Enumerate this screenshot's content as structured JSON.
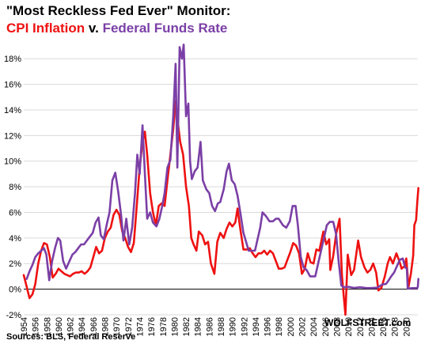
{
  "title": {
    "line1": "\"Most Reckless Fed Ever\" Monitor:",
    "cpi_label": "CPI Inflation",
    "connector": "v.",
    "ffr_label": "Federal Funds Rate"
  },
  "source": "Sources: BLS, Federal Reserve",
  "brand": "WOLFSTREET.com",
  "colors": {
    "cpi": "#ee1111",
    "ffr": "#7b3fa6",
    "grid": "#d9d9d9",
    "axis": "#000000"
  },
  "chart_data": {
    "type": "line",
    "xlim": [
      1954,
      2022
    ],
    "ylim": [
      -2,
      19
    ],
    "yticks": [
      -2,
      0,
      2,
      4,
      6,
      8,
      10,
      12,
      14,
      16,
      18
    ],
    "ytick_labels": [
      "-2%",
      "0%",
      "2%",
      "4%",
      "6%",
      "8%",
      "10%",
      "12%",
      "14%",
      "16%",
      "18%"
    ],
    "xticks": [
      1954,
      1956,
      1958,
      1960,
      1962,
      1964,
      1966,
      1968,
      1970,
      1972,
      1974,
      1976,
      1978,
      1980,
      1982,
      1984,
      1986,
      1988,
      1990,
      1992,
      1994,
      1996,
      1998,
      2000,
      2002,
      2004,
      2006,
      2008,
      2010,
      2012,
      2014,
      2016,
      2018,
      2020
    ],
    "grid": "horizontal",
    "series": [
      {
        "name": "CPI Inflation",
        "color": "#ee1111",
        "points": [
          [
            1954.0,
            1.1
          ],
          [
            1954.5,
            0.2
          ],
          [
            1955.0,
            -0.7
          ],
          [
            1955.5,
            -0.4
          ],
          [
            1956.0,
            0.4
          ],
          [
            1956.5,
            2.0
          ],
          [
            1957.0,
            3.0
          ],
          [
            1957.5,
            3.6
          ],
          [
            1958.0,
            3.5
          ],
          [
            1958.5,
            2.5
          ],
          [
            1959.0,
            0.9
          ],
          [
            1959.5,
            1.2
          ],
          [
            1960.0,
            1.6
          ],
          [
            1960.5,
            1.4
          ],
          [
            1961.0,
            1.2
          ],
          [
            1961.5,
            1.1
          ],
          [
            1962.0,
            1.0
          ],
          [
            1962.5,
            1.2
          ],
          [
            1963.0,
            1.3
          ],
          [
            1963.5,
            1.3
          ],
          [
            1964.0,
            1.4
          ],
          [
            1964.5,
            1.2
          ],
          [
            1965.0,
            1.4
          ],
          [
            1965.5,
            1.7
          ],
          [
            1966.0,
            2.5
          ],
          [
            1966.5,
            3.3
          ],
          [
            1967.0,
            2.8
          ],
          [
            1967.5,
            3.0
          ],
          [
            1968.0,
            4.0
          ],
          [
            1968.5,
            4.5
          ],
          [
            1969.0,
            4.8
          ],
          [
            1969.5,
            5.8
          ],
          [
            1970.0,
            6.2
          ],
          [
            1970.5,
            5.8
          ],
          [
            1971.0,
            4.5
          ],
          [
            1971.5,
            4.0
          ],
          [
            1972.0,
            3.3
          ],
          [
            1972.5,
            2.9
          ],
          [
            1973.0,
            3.6
          ],
          [
            1973.5,
            6.5
          ],
          [
            1974.0,
            9.5
          ],
          [
            1974.5,
            11.5
          ],
          [
            1974.9,
            12.3
          ],
          [
            1975.3,
            10.5
          ],
          [
            1975.8,
            7.5
          ],
          [
            1976.3,
            6.0
          ],
          [
            1976.8,
            5.0
          ],
          [
            1977.3,
            6.5
          ],
          [
            1977.8,
            6.7
          ],
          [
            1978.3,
            6.5
          ],
          [
            1978.8,
            8.5
          ],
          [
            1979.3,
            10.5
          ],
          [
            1979.8,
            12.5
          ],
          [
            1980.2,
            14.7
          ],
          [
            1980.6,
            13.0
          ],
          [
            1981.0,
            11.5
          ],
          [
            1981.5,
            10.5
          ],
          [
            1982.0,
            8.0
          ],
          [
            1982.5,
            6.5
          ],
          [
            1982.9,
            4.0
          ],
          [
            1983.3,
            3.5
          ],
          [
            1983.8,
            3.0
          ],
          [
            1984.2,
            4.5
          ],
          [
            1984.8,
            4.2
          ],
          [
            1985.3,
            3.5
          ],
          [
            1985.8,
            3.7
          ],
          [
            1986.3,
            2.0
          ],
          [
            1986.9,
            1.2
          ],
          [
            1987.4,
            3.7
          ],
          [
            1987.9,
            4.4
          ],
          [
            1988.5,
            4.0
          ],
          [
            1989.0,
            4.7
          ],
          [
            1989.5,
            5.2
          ],
          [
            1990.0,
            4.9
          ],
          [
            1990.5,
            5.2
          ],
          [
            1990.9,
            6.3
          ],
          [
            1991.3,
            4.9
          ],
          [
            1991.9,
            3.1
          ],
          [
            1992.5,
            3.1
          ],
          [
            1993.0,
            3.2
          ],
          [
            1993.5,
            2.8
          ],
          [
            1994.0,
            2.5
          ],
          [
            1994.5,
            2.8
          ],
          [
            1995.0,
            2.8
          ],
          [
            1995.5,
            3.0
          ],
          [
            1996.0,
            2.7
          ],
          [
            1996.5,
            3.0
          ],
          [
            1997.0,
            2.8
          ],
          [
            1997.5,
            2.2
          ],
          [
            1998.0,
            1.6
          ],
          [
            1998.5,
            1.6
          ],
          [
            1999.0,
            1.7
          ],
          [
            1999.5,
            2.3
          ],
          [
            2000.0,
            2.9
          ],
          [
            2000.5,
            3.6
          ],
          [
            2001.0,
            3.4
          ],
          [
            2001.5,
            2.8
          ],
          [
            2002.0,
            1.2
          ],
          [
            2002.5,
            1.6
          ],
          [
            2003.0,
            2.8
          ],
          [
            2003.5,
            2.1
          ],
          [
            2004.0,
            2.0
          ],
          [
            2004.5,
            3.1
          ],
          [
            2005.0,
            3.0
          ],
          [
            2005.7,
            4.5
          ],
          [
            2006.2,
            3.5
          ],
          [
            2006.7,
            3.9
          ],
          [
            2006.9,
            1.5
          ],
          [
            2007.4,
            2.6
          ],
          [
            2007.9,
            4.3
          ],
          [
            2008.5,
            5.5
          ],
          [
            2008.9,
            1.1
          ],
          [
            2009.2,
            -0.5
          ],
          [
            2009.5,
            -2.0
          ],
          [
            2009.9,
            2.7
          ],
          [
            2010.5,
            1.1
          ],
          [
            2011.0,
            1.5
          ],
          [
            2011.7,
            3.8
          ],
          [
            2012.2,
            2.5
          ],
          [
            2012.8,
            1.7
          ],
          [
            2013.3,
            1.3
          ],
          [
            2013.8,
            1.5
          ],
          [
            2014.3,
            2.0
          ],
          [
            2014.8,
            1.3
          ],
          [
            2015.2,
            -0.1
          ],
          [
            2015.7,
            0.1
          ],
          [
            2016.3,
            1.0
          ],
          [
            2016.8,
            2.0
          ],
          [
            2017.2,
            2.5
          ],
          [
            2017.7,
            2.0
          ],
          [
            2018.3,
            2.8
          ],
          [
            2018.8,
            2.2
          ],
          [
            2019.2,
            1.6
          ],
          [
            2019.7,
            1.8
          ],
          [
            2020.0,
            2.4
          ],
          [
            2020.4,
            0.2
          ],
          [
            2020.8,
            1.2
          ],
          [
            2021.2,
            2.6
          ],
          [
            2021.4,
            5.0
          ],
          [
            2021.7,
            5.4
          ],
          [
            2021.9,
            6.8
          ],
          [
            2022.1,
            7.9
          ]
        ]
      },
      {
        "name": "Federal Funds Rate",
        "color": "#7b3fa6",
        "points": [
          [
            1954.5,
            0.8
          ],
          [
            1955.0,
            1.4
          ],
          [
            1955.5,
            1.9
          ],
          [
            1956.0,
            2.5
          ],
          [
            1956.5,
            2.8
          ],
          [
            1957.0,
            3.0
          ],
          [
            1957.5,
            3.2
          ],
          [
            1957.9,
            2.7
          ],
          [
            1958.4,
            0.7
          ],
          [
            1958.9,
            2.2
          ],
          [
            1959.4,
            3.2
          ],
          [
            1959.9,
            4.0
          ],
          [
            1960.3,
            3.8
          ],
          [
            1960.8,
            2.2
          ],
          [
            1961.3,
            1.6
          ],
          [
            1961.8,
            2.1
          ],
          [
            1962.4,
            2.7
          ],
          [
            1962.9,
            2.9
          ],
          [
            1963.4,
            3.2
          ],
          [
            1963.9,
            3.5
          ],
          [
            1964.4,
            3.5
          ],
          [
            1964.9,
            3.8
          ],
          [
            1965.4,
            4.1
          ],
          [
            1965.9,
            4.4
          ],
          [
            1966.4,
            5.2
          ],
          [
            1966.9,
            5.6
          ],
          [
            1967.3,
            4.2
          ],
          [
            1967.8,
            3.9
          ],
          [
            1968.3,
            5.0
          ],
          [
            1968.8,
            6.0
          ],
          [
            1969.3,
            8.5
          ],
          [
            1969.8,
            9.1
          ],
          [
            1970.3,
            7.6
          ],
          [
            1970.8,
            5.8
          ],
          [
            1971.2,
            3.8
          ],
          [
            1971.7,
            5.5
          ],
          [
            1972.2,
            3.5
          ],
          [
            1972.7,
            4.8
          ],
          [
            1973.2,
            7.5
          ],
          [
            1973.6,
            10.5
          ],
          [
            1974.0,
            9.0
          ],
          [
            1974.5,
            12.8
          ],
          [
            1974.9,
            9.0
          ],
          [
            1975.3,
            5.5
          ],
          [
            1975.8,
            6.0
          ],
          [
            1976.3,
            5.2
          ],
          [
            1976.9,
            4.9
          ],
          [
            1977.4,
            5.5
          ],
          [
            1977.9,
            6.5
          ],
          [
            1978.3,
            7.5
          ],
          [
            1978.8,
            9.5
          ],
          [
            1979.3,
            10.1
          ],
          [
            1979.8,
            13.5
          ],
          [
            1980.2,
            17.6
          ],
          [
            1980.5,
            9.5
          ],
          [
            1980.9,
            18.9
          ],
          [
            1981.3,
            18.0
          ],
          [
            1981.6,
            19.1
          ],
          [
            1982.0,
            13.5
          ],
          [
            1982.4,
            14.5
          ],
          [
            1982.7,
            10.0
          ],
          [
            1983.0,
            8.6
          ],
          [
            1983.5,
            9.2
          ],
          [
            1984.0,
            9.5
          ],
          [
            1984.5,
            11.5
          ],
          [
            1984.9,
            8.5
          ],
          [
            1985.5,
            7.8
          ],
          [
            1986.0,
            7.5
          ],
          [
            1986.5,
            6.5
          ],
          [
            1987.0,
            6.1
          ],
          [
            1987.5,
            6.7
          ],
          [
            1987.9,
            6.8
          ],
          [
            1988.5,
            7.8
          ],
          [
            1989.0,
            9.2
          ],
          [
            1989.4,
            9.8
          ],
          [
            1989.9,
            8.5
          ],
          [
            1990.4,
            8.2
          ],
          [
            1990.9,
            7.3
          ],
          [
            1991.4,
            5.9
          ],
          [
            1991.9,
            4.4
          ],
          [
            1992.3,
            3.8
          ],
          [
            1992.8,
            3.0
          ],
          [
            1993.3,
            3.0
          ],
          [
            1993.9,
            3.0
          ],
          [
            1994.3,
            3.8
          ],
          [
            1994.8,
            4.8
          ],
          [
            1995.2,
            6.0
          ],
          [
            1995.8,
            5.7
          ],
          [
            1996.4,
            5.3
          ],
          [
            1997.0,
            5.3
          ],
          [
            1997.5,
            5.5
          ],
          [
            1998.0,
            5.5
          ],
          [
            1998.7,
            5.0
          ],
          [
            1999.3,
            4.8
          ],
          [
            1999.9,
            5.3
          ],
          [
            2000.4,
            6.5
          ],
          [
            2000.9,
            6.5
          ],
          [
            2001.3,
            5.0
          ],
          [
            2001.8,
            2.5
          ],
          [
            2002.3,
            1.7
          ],
          [
            2002.8,
            1.5
          ],
          [
            2003.4,
            1.0
          ],
          [
            2003.9,
            1.0
          ],
          [
            2004.3,
            1.0
          ],
          [
            2004.8,
            2.0
          ],
          [
            2005.3,
            3.0
          ],
          [
            2005.8,
            4.0
          ],
          [
            2006.3,
            5.0
          ],
          [
            2006.8,
            5.25
          ],
          [
            2007.4,
            5.25
          ],
          [
            2007.9,
            4.3
          ],
          [
            2008.3,
            2.3
          ],
          [
            2008.8,
            0.3
          ],
          [
            2009.2,
            0.15
          ],
          [
            2010.0,
            0.18
          ],
          [
            2011.0,
            0.1
          ],
          [
            2012.0,
            0.15
          ],
          [
            2013.0,
            0.1
          ],
          [
            2014.0,
            0.09
          ],
          [
            2015.0,
            0.12
          ],
          [
            2015.9,
            0.37
          ],
          [
            2016.5,
            0.4
          ],
          [
            2016.9,
            0.65
          ],
          [
            2017.4,
            1.0
          ],
          [
            2017.9,
            1.3
          ],
          [
            2018.4,
            1.8
          ],
          [
            2018.9,
            2.3
          ],
          [
            2019.4,
            2.4
          ],
          [
            2019.8,
            1.7
          ],
          [
            2020.1,
            1.6
          ],
          [
            2020.25,
            0.05
          ],
          [
            2021.0,
            0.08
          ],
          [
            2021.9,
            0.08
          ],
          [
            2022.0,
            0.2
          ],
          [
            2022.1,
            0.8
          ]
        ]
      }
    ]
  }
}
